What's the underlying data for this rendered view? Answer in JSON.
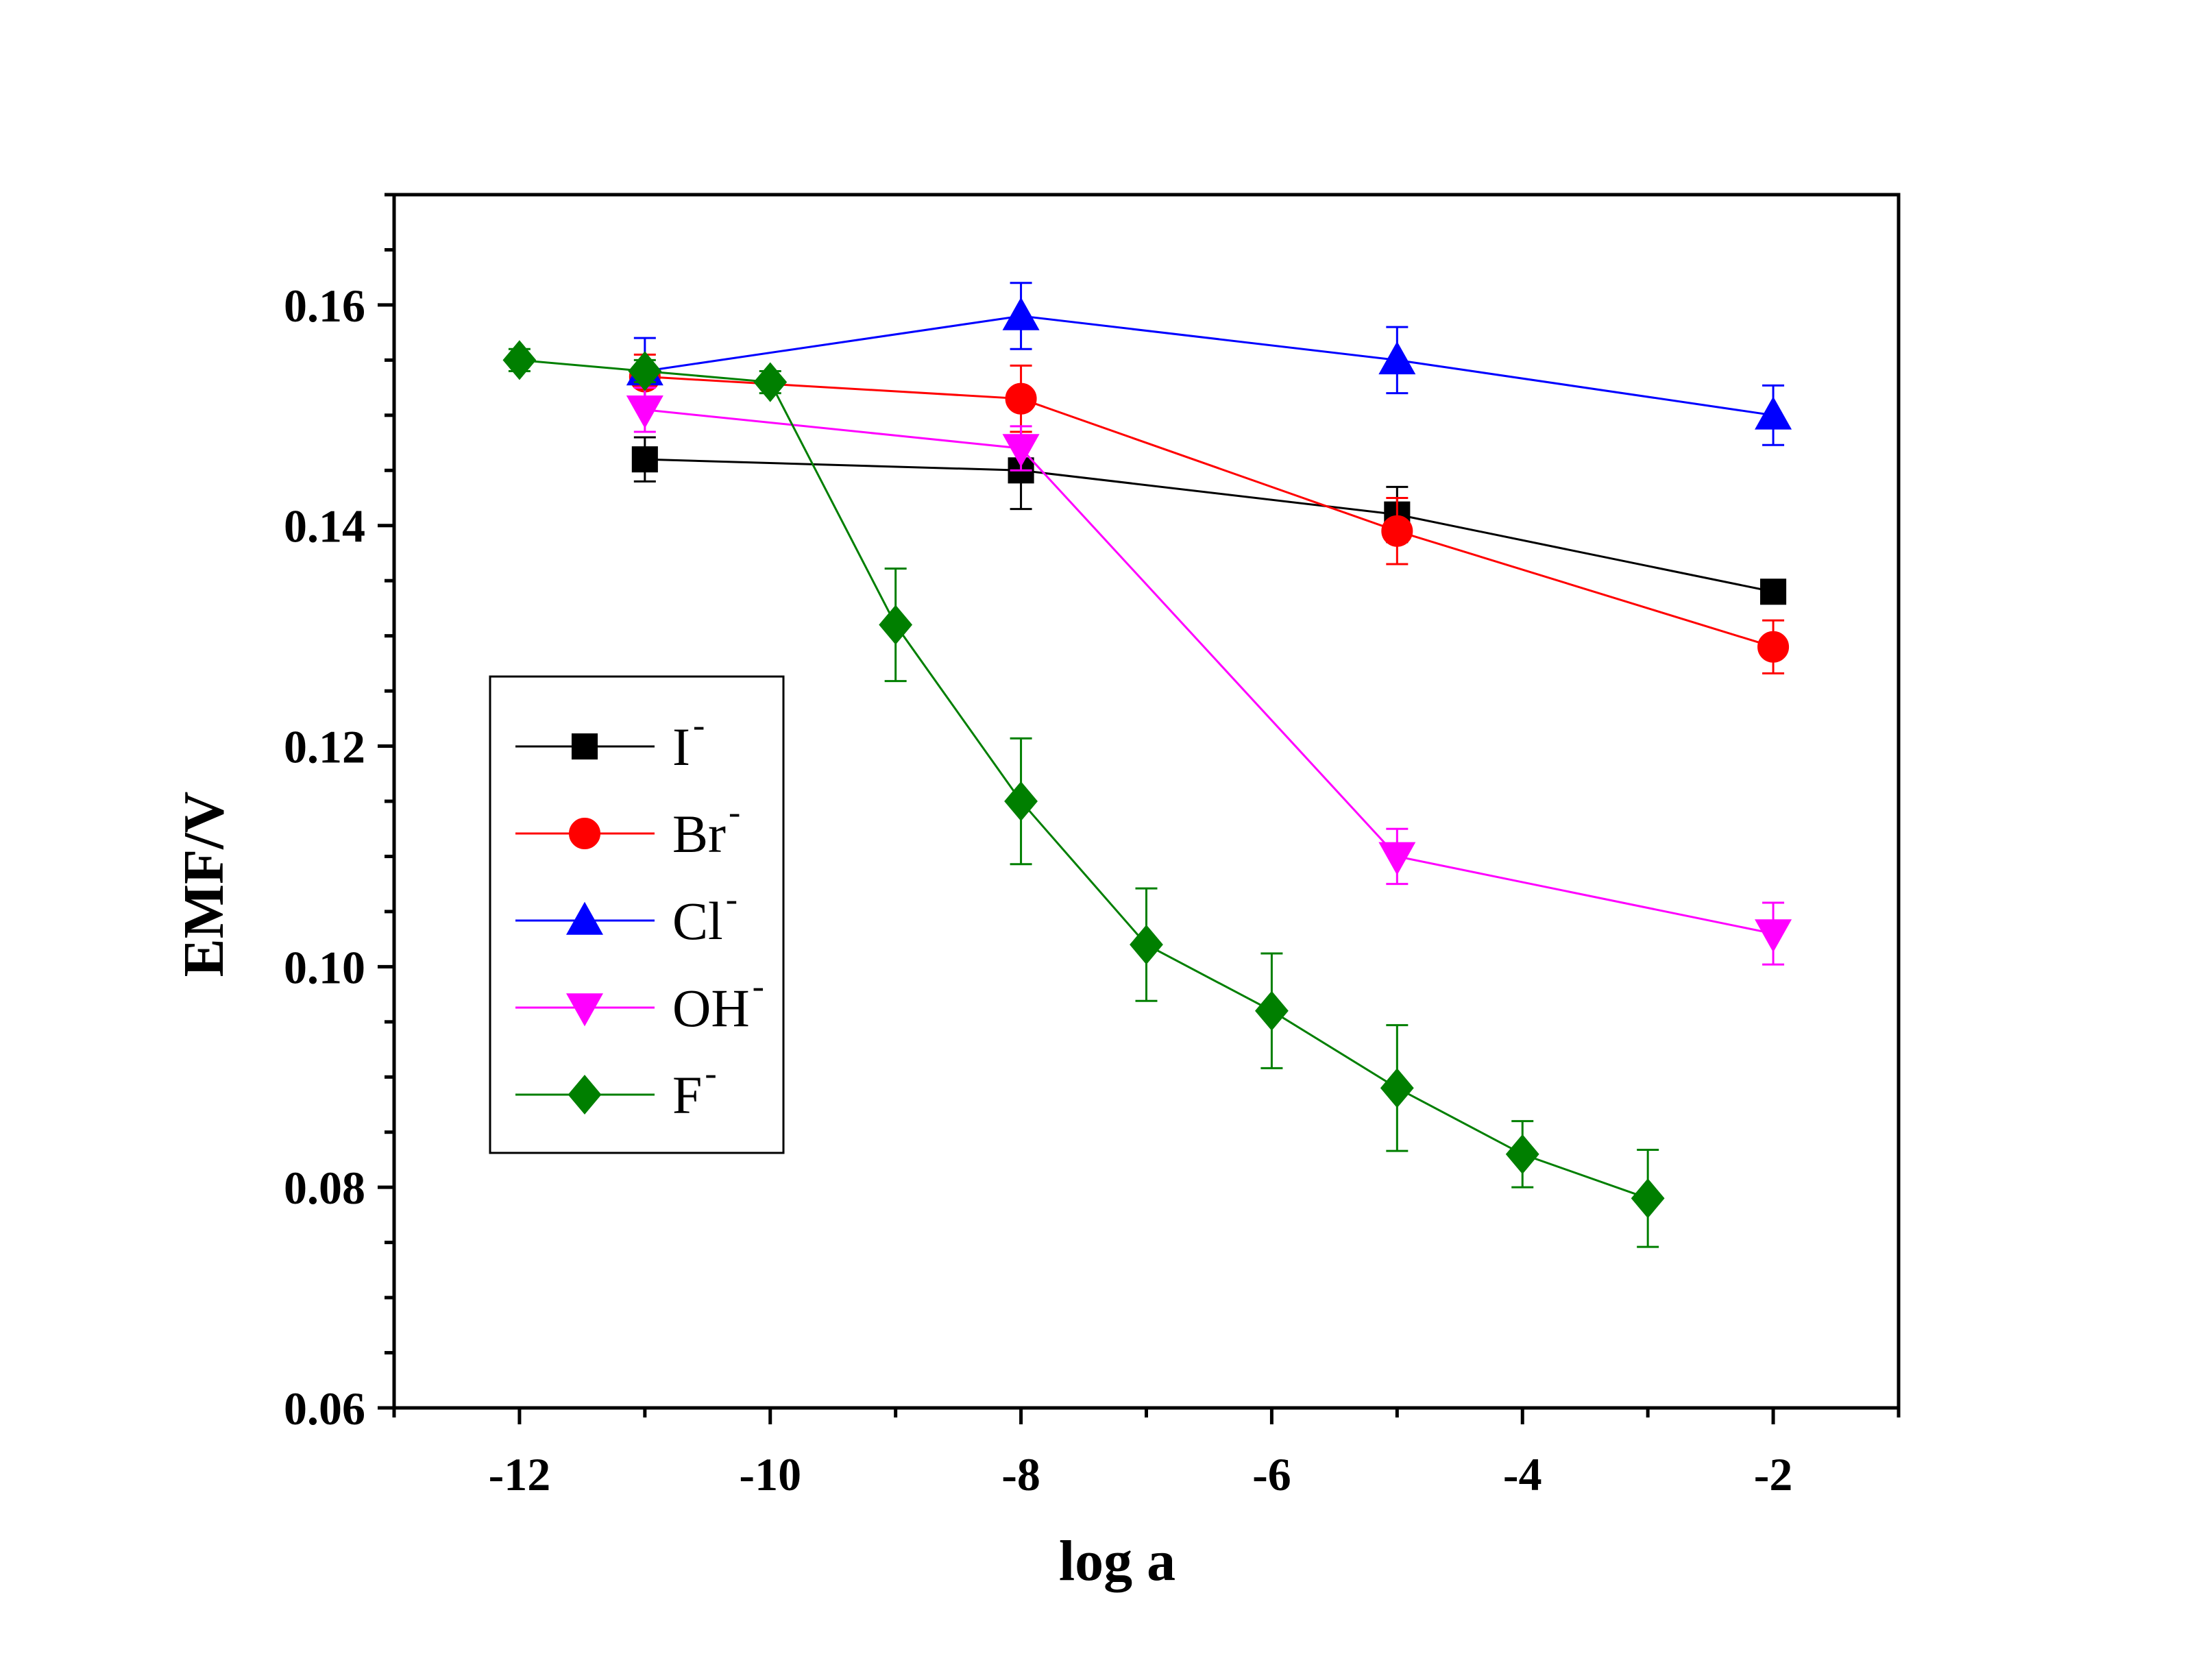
{
  "chart_data": {
    "type": "line",
    "title": "",
    "xlabel": "log a",
    "ylabel": "EMF/V",
    "xlim": [
      -13,
      -1
    ],
    "ylim": [
      0.06,
      0.17
    ],
    "xticks": [
      -12,
      -10,
      -8,
      -6,
      -4,
      -2
    ],
    "xtick_labels": [
      "-12",
      "-10",
      "-8",
      "-6",
      "-4",
      "-2"
    ],
    "yticks": [
      0.06,
      0.08,
      0.1,
      0.12,
      0.14,
      0.16
    ],
    "ytick_labels": [
      "0.06",
      "0.08",
      "0.10",
      "0.12",
      "0.14",
      "0.16"
    ],
    "grid": false,
    "legend_position": "center-left",
    "series": [
      {
        "name": "I",
        "superscript": "-",
        "color": "#000000",
        "marker": "square",
        "x": [
          -11,
          -8,
          -5,
          -2
        ],
        "y": [
          0.146,
          0.145,
          0.141,
          0.134
        ],
        "err": [
          0.002,
          0.0035,
          0.0025,
          0.001
        ]
      },
      {
        "name": "Br",
        "superscript": "-",
        "color": "#ff0000",
        "marker": "circle",
        "x": [
          -11,
          -8,
          -5,
          -2
        ],
        "y": [
          0.1535,
          0.1515,
          0.1395,
          0.129
        ],
        "err": [
          0.002,
          0.003,
          0.003,
          0.0024
        ]
      },
      {
        "name": "Cl",
        "superscript": "-",
        "color": "#0000ff",
        "marker": "triangle-up",
        "x": [
          -11,
          -8,
          -5,
          -2
        ],
        "y": [
          0.154,
          0.159,
          0.155,
          0.15
        ],
        "err": [
          0.003,
          0.003,
          0.003,
          0.0027
        ]
      },
      {
        "name": "OH",
        "superscript": "-",
        "color": "#ff00ff",
        "marker": "triangle-down",
        "x": [
          -11,
          -8,
          -5,
          -2
        ],
        "y": [
          0.1505,
          0.147,
          0.11,
          0.103
        ],
        "err": [
          0.002,
          0.002,
          0.0025,
          0.0028
        ]
      },
      {
        "name": "F",
        "superscript": "-",
        "color": "#007f00",
        "marker": "diamond",
        "x": [
          -12,
          -11,
          -10,
          -9,
          -8,
          -7,
          -6,
          -5,
          -4,
          -3
        ],
        "y": [
          0.155,
          0.154,
          0.153,
          0.131,
          0.115,
          0.102,
          0.096,
          0.089,
          0.083,
          0.079
        ],
        "err": [
          0.001,
          0.001,
          0.001,
          0.0051,
          0.0057,
          0.0051,
          0.0052,
          0.0057,
          0.003,
          0.0044
        ]
      }
    ]
  }
}
